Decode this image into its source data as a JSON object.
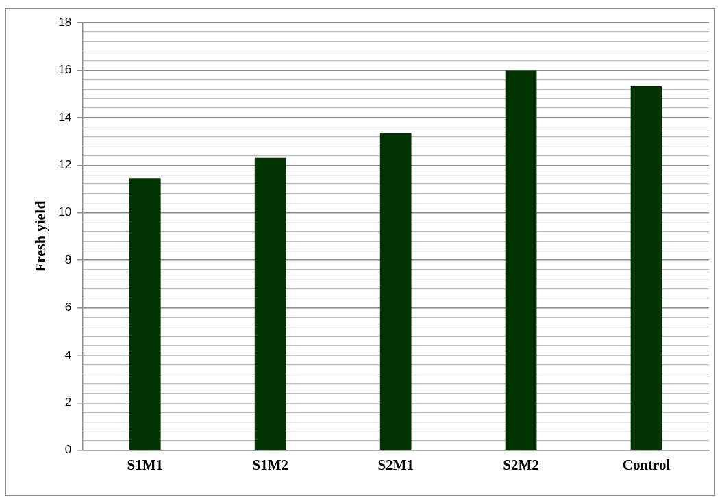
{
  "chart_data": {
    "type": "bar",
    "ylabel": "Fresh yield",
    "categories": [
      "S1M1",
      "S1M2",
      "S2M1",
      "S2M2",
      "Control"
    ],
    "values": [
      11.45,
      12.3,
      13.35,
      16,
      15.33
    ],
    "color": "#003300",
    "ylim": [
      0,
      18
    ],
    "yticks": [
      0,
      {
        "value": 0.4,
        "label": null
      },
      {
        "value": 0.8,
        "label": null
      },
      {
        "value": 1.2,
        "label": null
      },
      {
        "value": 1.6,
        "label": null
      },
      2,
      {
        "value": 2.4,
        "label": null
      },
      {
        "value": 2.8,
        "label": null
      },
      {
        "value": 3.2,
        "label": null
      },
      {
        "value": 3.6,
        "label": null
      },
      4,
      {
        "value": 4.4,
        "label": null
      },
      {
        "value": 4.8,
        "label": null
      },
      {
        "value": 5.2,
        "label": null
      },
      {
        "value": 5.6,
        "label": null
      },
      6,
      {
        "value": 6.4,
        "label": null
      },
      {
        "value": 6.8,
        "label": null
      },
      {
        "value": 7.2,
        "label": null
      },
      {
        "value": 7.6,
        "label": null
      },
      8,
      {
        "value": 8.4,
        "label": null
      },
      {
        "value": 8.8,
        "label": null
      },
      {
        "value": 9.2,
        "label": null
      },
      {
        "value": 9.6,
        "label": null
      },
      10,
      {
        "value": 10.4,
        "label": null
      },
      {
        "value": 10.8,
        "label": null
      },
      {
        "value": 11.2,
        "label": null
      },
      {
        "value": 11.6,
        "label": null
      },
      12,
      {
        "value": 12.4,
        "label": null
      },
      {
        "value": 12.8,
        "label": null
      },
      {
        "value": 13.2,
        "label": null
      },
      {
        "value": 13.6,
        "label": null
      },
      14,
      {
        "value": 14.4,
        "label": null
      },
      {
        "value": 14.8,
        "label": null
      },
      {
        "value": 15.2,
        "label": null
      },
      {
        "value": 15.6,
        "label": null
      },
      16,
      {
        "value": 16.4,
        "label": null
      },
      {
        "value": 16.8,
        "label": null
      },
      {
        "value": 17.2,
        "label": null
      },
      {
        "value": 17.6,
        "label": null
      },
      18
    ],
    "grid": "y",
    "legend": false
  }
}
